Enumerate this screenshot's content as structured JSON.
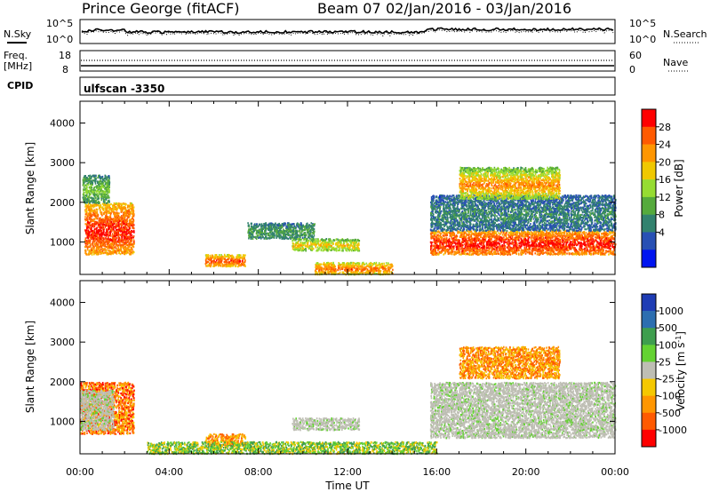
{
  "header": {
    "station": "Prince George (fitACF)",
    "beam": "Beam 07",
    "date_range": "02/Jan/2016 - 03/Jan/2016"
  },
  "scan_label": "ulfscan -3350",
  "panels": {
    "nsky": {
      "label": "N.Sky",
      "right_label": "N.Search",
      "ticks": [
        "10^5",
        "10^0"
      ]
    },
    "freq": {
      "label_line1": "Freq.",
      "label_line2": "[MHz]",
      "right_label": "Nave",
      "left_ticks": [
        "18",
        "8"
      ],
      "right_ticks": [
        "60",
        "0"
      ]
    },
    "cpid": {
      "label": "CPID"
    }
  },
  "colorbars": {
    "power": {
      "title": "Power [dB]",
      "ticks": [
        "28",
        "24",
        "20",
        "16",
        "12",
        "8",
        "4"
      ],
      "colors": [
        "#ff0000",
        "#ff5a00",
        "#ff9600",
        "#f0c800",
        "#96dc32",
        "#55aa3c",
        "#32826e",
        "#2850b4",
        "#0014f0"
      ]
    },
    "velocity": {
      "title": "Velocity [m s",
      "title_sup": "-1",
      "title_end": "]",
      "ticks": [
        "1000",
        "500",
        "100",
        "25",
        "-25",
        "-100",
        "-500",
        "-1000"
      ],
      "colors": [
        "#1e3cb4",
        "#2c6eb0",
        "#3e9e4e",
        "#64d232",
        "#bebeb4",
        "#f5c800",
        "#ff9600",
        "#ff5a00",
        "#ff0000"
      ]
    }
  },
  "chart_data": [
    {
      "type": "heatmap",
      "title": "",
      "xlabel": "Time UT",
      "ylabel": "Slant Range [km]",
      "x_ticks": [
        "00:00",
        "04:00",
        "08:00",
        "12:00",
        "16:00",
        "20:00",
        "00:00"
      ],
      "y_ticks": [
        "4000",
        "3000",
        "2000",
        "1000"
      ],
      "xlim": [
        0,
        24
      ],
      "ylim": [
        180,
        4550
      ],
      "colorbar": "Power [dB]",
      "clim": [
        0,
        30
      ],
      "echo_regions": [
        {
          "t": [
            0.2,
            2.4
          ],
          "range": [
            700,
            2000
          ],
          "value": "18-30 dB"
        },
        {
          "t": [
            0.1,
            1.3
          ],
          "range": [
            2000,
            2700
          ],
          "value": "6-14 dB"
        },
        {
          "t": [
            5.6,
            7.4
          ],
          "range": [
            400,
            700
          ],
          "value": "16-28 dB"
        },
        {
          "t": [
            7.5,
            10.5
          ],
          "range": [
            1100,
            1500
          ],
          "value": "6-10 dB"
        },
        {
          "t": [
            9.5,
            12.5
          ],
          "range": [
            800,
            1100
          ],
          "value": "10-20 dB"
        },
        {
          "t": [
            10.5,
            14.0
          ],
          "range": [
            200,
            500
          ],
          "value": "14-26 dB"
        },
        {
          "t": [
            15.7,
            24.0
          ],
          "range": [
            700,
            1300
          ],
          "value": "20-30 dB"
        },
        {
          "t": [
            15.7,
            24.0
          ],
          "range": [
            1300,
            2200
          ],
          "value": "4-8 dB"
        },
        {
          "t": [
            17.0,
            21.5
          ],
          "range": [
            2100,
            2900
          ],
          "value": "10-24 dB"
        }
      ]
    },
    {
      "type": "heatmap",
      "title": "",
      "xlabel": "Time UT",
      "ylabel": "Slant Range [km]",
      "x_ticks": [
        "00:00",
        "04:00",
        "08:00",
        "12:00",
        "16:00",
        "20:00",
        "00:00"
      ],
      "y_ticks": [
        "4000",
        "3000",
        "2000",
        "1000"
      ],
      "xlim": [
        0,
        24
      ],
      "ylim": [
        180,
        4550
      ],
      "colorbar": "Velocity [m s-1]",
      "clim": [
        -1000,
        1000
      ],
      "echo_regions": [
        {
          "t": [
            0.0,
            2.4
          ],
          "range": [
            700,
            2000
          ],
          "value": "-100 to -1000 m/s"
        },
        {
          "t": [
            0.0,
            1.5
          ],
          "range": [
            800,
            1800
          ],
          "value": "ground scatter (-25 to 25)"
        },
        {
          "t": [
            5.6,
            7.4
          ],
          "range": [
            400,
            700
          ],
          "value": "-100 to -500 m/s"
        },
        {
          "t": [
            9.5,
            12.5
          ],
          "range": [
            800,
            1100
          ],
          "value": "ground scatter (-25 to 25)"
        },
        {
          "t": [
            3.0,
            16.0
          ],
          "range": [
            200,
            500
          ],
          "value": "25 to 100 m/s"
        },
        {
          "t": [
            15.7,
            24.0
          ],
          "range": [
            600,
            2000
          ],
          "value": "ground scatter (-25 to 25)"
        },
        {
          "t": [
            17.0,
            21.5
          ],
          "range": [
            2100,
            2900
          ],
          "value": "-100 to -500 m/s"
        }
      ]
    }
  ]
}
